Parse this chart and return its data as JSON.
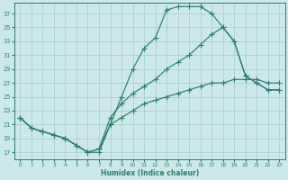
{
  "xlabel": "Humidex (Indice chaleur)",
  "bg_color": "#cce8e8",
  "grid_color": "#aacfcf",
  "line_color": "#2d7d72",
  "xlim": [
    -0.5,
    23.5
  ],
  "ylim": [
    16,
    38.5
  ],
  "xticks": [
    0,
    1,
    2,
    3,
    4,
    5,
    6,
    7,
    8,
    9,
    10,
    11,
    12,
    13,
    14,
    15,
    16,
    17,
    18,
    19,
    20,
    21,
    22,
    23
  ],
  "yticks": [
    17,
    19,
    21,
    23,
    25,
    27,
    29,
    31,
    33,
    35,
    37
  ],
  "line1_x": [
    0,
    1,
    2,
    3,
    4,
    5,
    6,
    7,
    8,
    9,
    10,
    11,
    12,
    13,
    14,
    15,
    16,
    17,
    18,
    19,
    20,
    21,
    22,
    23
  ],
  "line1_y": [
    22,
    20.5,
    20,
    19.5,
    19,
    18,
    17,
    17,
    21,
    25,
    29,
    32,
    33.5,
    37.5,
    38,
    38,
    38,
    37,
    35,
    33,
    28,
    27,
    26,
    26
  ],
  "line2_x": [
    0,
    1,
    2,
    3,
    4,
    5,
    6,
    7,
    8,
    9,
    10,
    11,
    12,
    13,
    14,
    15,
    16,
    17,
    18,
    19,
    20,
    21,
    22,
    23
  ],
  "line2_y": [
    22,
    20.5,
    20,
    19.5,
    19,
    18,
    17,
    17.5,
    22,
    24,
    25.5,
    26.5,
    27.5,
    29,
    30,
    31,
    32.5,
    34,
    35,
    33,
    28,
    27,
    26,
    26
  ],
  "line3_x": [
    0,
    1,
    2,
    3,
    4,
    5,
    6,
    7,
    8,
    9,
    10,
    11,
    12,
    13,
    14,
    15,
    16,
    17,
    18,
    19,
    20,
    21,
    22,
    23
  ],
  "line3_y": [
    22,
    20.5,
    20,
    19.5,
    19,
    18,
    17,
    17.5,
    21,
    22,
    23,
    24,
    24.5,
    25,
    25.5,
    26,
    26.5,
    27,
    27,
    27.5,
    27.5,
    27.5,
    27,
    27
  ]
}
